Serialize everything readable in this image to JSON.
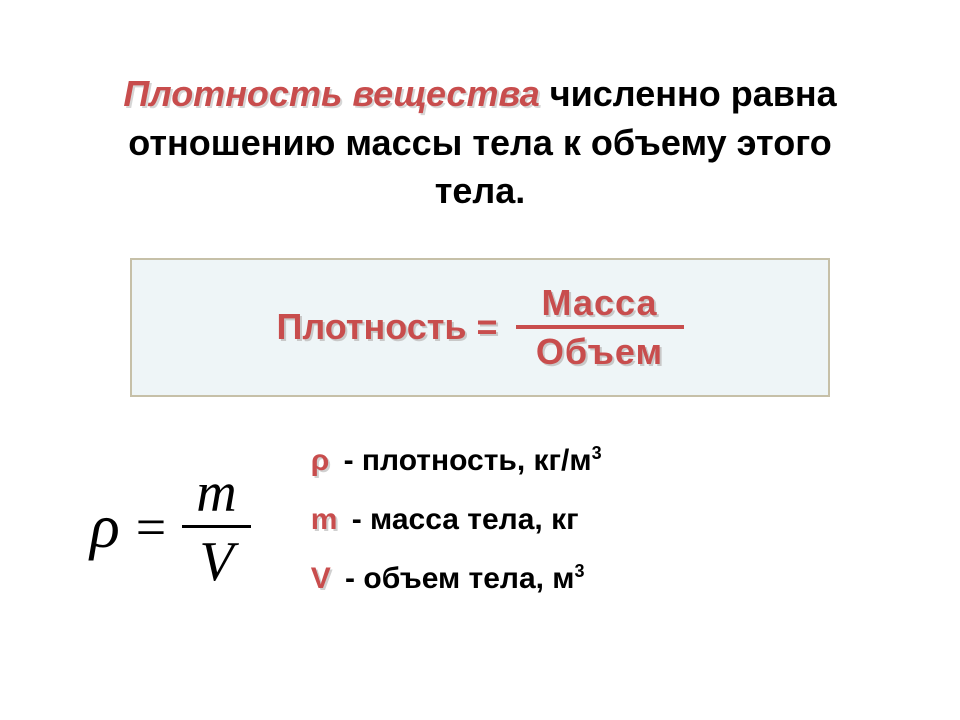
{
  "colors": {
    "accent": "#c84d4d",
    "text": "#000000",
    "box_bg": "#eef5f7",
    "box_border": "#c6c0a8",
    "shadow": "#d0d0d0",
    "page_bg": "#ffffff"
  },
  "definition": {
    "term": "Плотность вещества",
    "rest": " численно равна отношению массы тела к объему этого тела.",
    "fontsize": 36
  },
  "word_formula": {
    "lhs": "Плотность =",
    "numerator": "Масса",
    "denominator": "Объем",
    "fontsize": 36
  },
  "sym_formula": {
    "lhs": "ρ",
    "eq": "=",
    "numerator": "m",
    "denominator": "V",
    "font_family": "Times New Roman",
    "fontsize": 60
  },
  "legend": {
    "fontsize": 30,
    "items": [
      {
        "symbol": "ρ",
        "dash": " - ",
        "desc": "плотность, кг/м",
        "sup": "3"
      },
      {
        "symbol": "m",
        "dash": " - ",
        "desc": "масса тела, кг",
        "sup": ""
      },
      {
        "symbol": "V",
        "dash": " - ",
        "desc": "объем тела, м",
        "sup": "3"
      }
    ]
  }
}
